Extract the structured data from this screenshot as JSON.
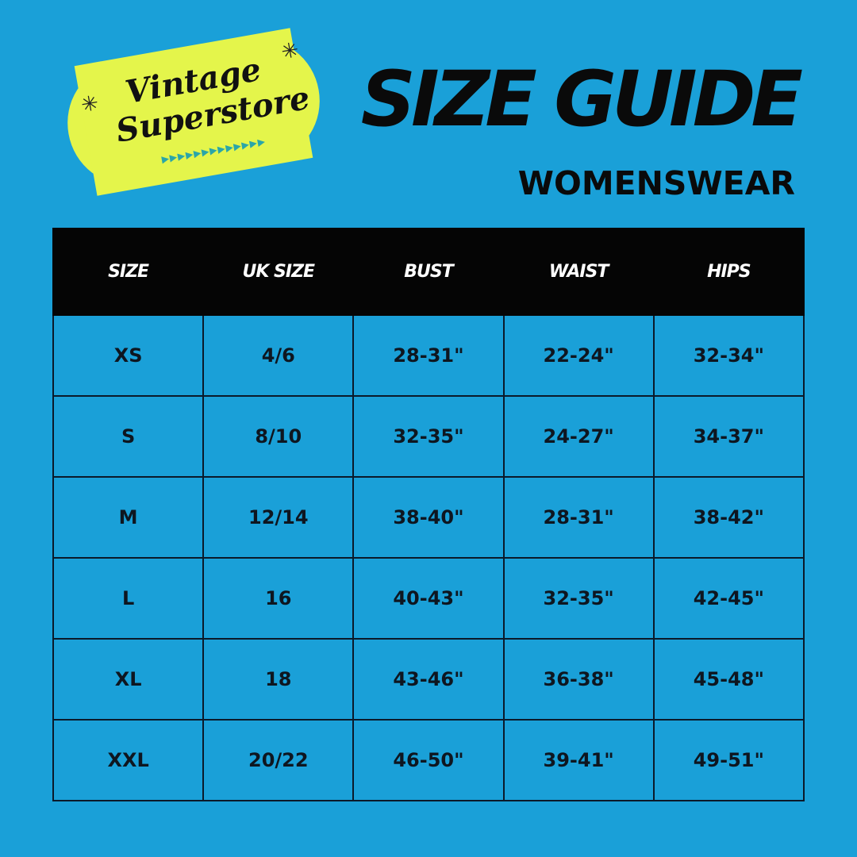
{
  "logo": {
    "line1": "Vintage",
    "line2": "Superstore",
    "colors": {
      "ticket": "#e4f54b",
      "triangles": "#2aa6a8"
    }
  },
  "title": "SIZE GUIDE",
  "subtitle": "WOMENSWEAR",
  "colors": {
    "background": "#1aa0d8",
    "header": "#050505",
    "text": "#0e1620"
  },
  "table": {
    "headers": [
      "SIZE",
      "UK SIZE",
      "BUST",
      "WAIST",
      "HIPS"
    ],
    "rows": [
      [
        "XS",
        "4/6",
        "28-31\"",
        "22-24\"",
        "32-34\""
      ],
      [
        "S",
        "8/10",
        "32-35\"",
        "24-27\"",
        "34-37\""
      ],
      [
        "M",
        "12/14",
        "38-40\"",
        "28-31\"",
        "38-42\""
      ],
      [
        "L",
        "16",
        "40-43\"",
        "32-35\"",
        "42-45\""
      ],
      [
        "XL",
        "18",
        "43-46\"",
        "36-38\"",
        "45-48\""
      ],
      [
        "XXL",
        "20/22",
        "46-50\"",
        "39-41\"",
        "49-51\""
      ]
    ]
  }
}
